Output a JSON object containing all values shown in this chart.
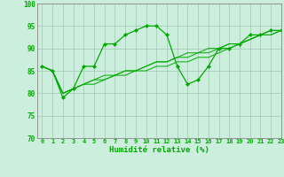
{
  "xlabel": "Humidité relative (%)",
  "bg_color": "#cceedd",
  "grid_color": "#aaccbb",
  "line_color": "#00aa00",
  "xlim": [
    -0.5,
    23
  ],
  "ylim": [
    70,
    100
  ],
  "yticks": [
    70,
    75,
    80,
    85,
    90,
    95,
    100
  ],
  "xticks": [
    0,
    1,
    2,
    3,
    4,
    5,
    6,
    7,
    8,
    9,
    10,
    11,
    12,
    13,
    14,
    15,
    16,
    17,
    18,
    19,
    20,
    21,
    22,
    23
  ],
  "series": [
    [
      86,
      85,
      79,
      81,
      86,
      86,
      91,
      91,
      93,
      94,
      95,
      95,
      93,
      86,
      82,
      83,
      86,
      90,
      90,
      91,
      93,
      93,
      94,
      94
    ],
    [
      86,
      85,
      80,
      81,
      82,
      82,
      83,
      84,
      84,
      85,
      85,
      86,
      86,
      87,
      87,
      88,
      88,
      89,
      90,
      91,
      92,
      93,
      93,
      94
    ],
    [
      86,
      85,
      80,
      81,
      82,
      83,
      83,
      84,
      85,
      85,
      86,
      87,
      87,
      88,
      88,
      89,
      89,
      90,
      91,
      91,
      92,
      93,
      93,
      94
    ],
    [
      86,
      85,
      80,
      81,
      82,
      83,
      84,
      84,
      85,
      85,
      86,
      87,
      87,
      88,
      89,
      89,
      90,
      90,
      91,
      91,
      92,
      93,
      94,
      94
    ]
  ],
  "marker_series": 0,
  "marker": "D",
  "markersize": 2.0,
  "linewidth_main": 0.9,
  "linewidth_others": 0.7,
  "tick_fontsize": 5.0,
  "xlabel_fontsize": 6.5,
  "xlabel_fontweight": "bold"
}
